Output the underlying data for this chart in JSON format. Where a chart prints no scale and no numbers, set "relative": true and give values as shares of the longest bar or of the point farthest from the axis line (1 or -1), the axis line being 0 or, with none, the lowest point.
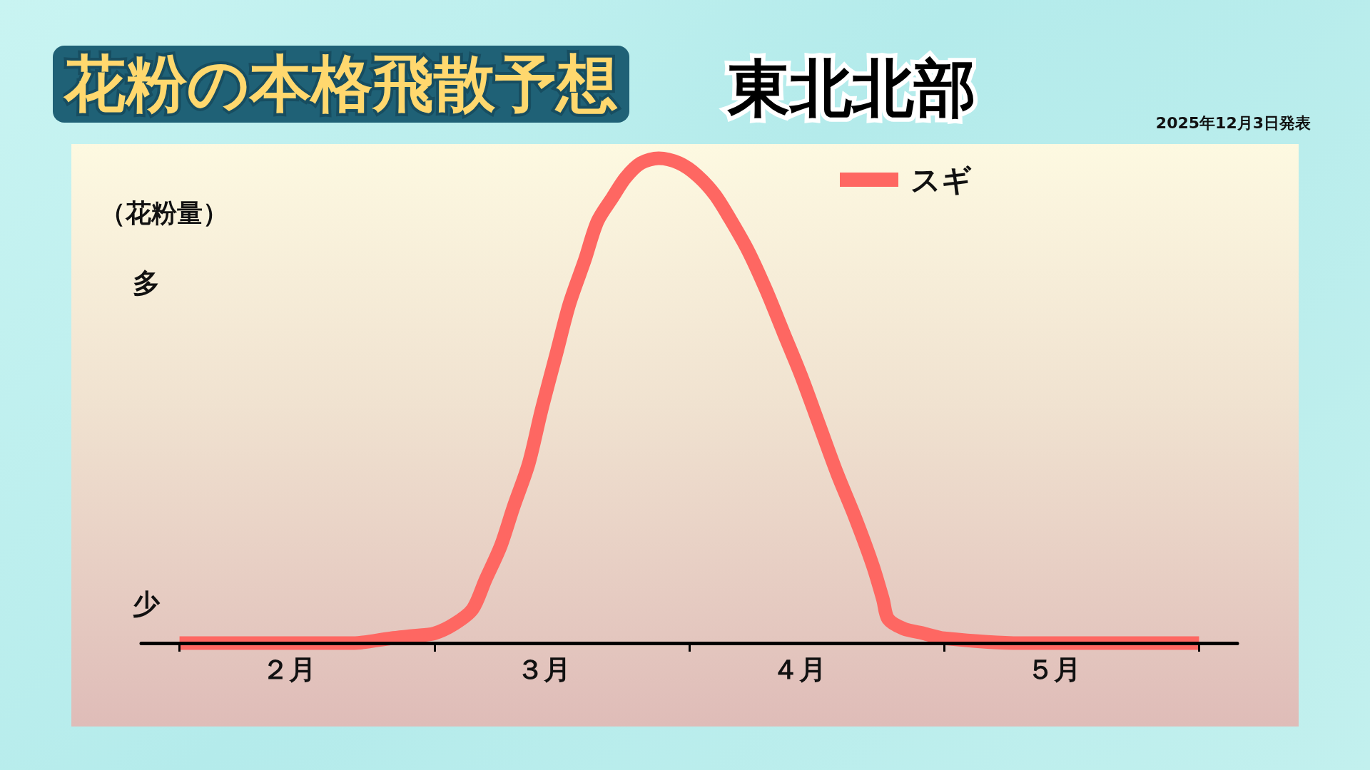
{
  "chart_data": {
    "type": "line",
    "title": "花粉の本格飛散予想",
    "subtitle": "東北北部",
    "ylabel": "（花粉量）",
    "annotations": [
      "多",
      "少",
      "2025年12月3日発表"
    ],
    "relative": true,
    "legend": "top right",
    "marker": "none",
    "xlim": [
      1.85,
      6.15
    ],
    "xticks": [
      {
        "value": 2,
        "label": null
      },
      {
        "value": 2.43,
        "label": "２月"
      },
      {
        "value": 3,
        "label": null
      },
      {
        "value": 3.43,
        "label": "３月"
      },
      {
        "value": 4,
        "label": null
      },
      {
        "value": 4.43,
        "label": "４月"
      },
      {
        "value": 5,
        "label": null
      },
      {
        "value": 5.43,
        "label": "５月"
      },
      {
        "value": 6,
        "label": null
      }
    ],
    "x": [
      2.0,
      2.3,
      2.68,
      2.83,
      2.92,
      3.0,
      3.08,
      3.15,
      3.2,
      3.26,
      3.31,
      3.37,
      3.42,
      3.48,
      3.53,
      3.59,
      3.64,
      3.7,
      3.75,
      3.81,
      3.88,
      3.96,
      4.03,
      4.1,
      4.16,
      4.23,
      4.3,
      4.37,
      4.44,
      4.51,
      4.58,
      4.65,
      4.72,
      4.76,
      4.78,
      4.84,
      4.92,
      5.0,
      5.3,
      6.0
    ],
    "series": [
      {
        "name": "スギ",
        "color": "#fe6762",
        "values": [
          0,
          0,
          0,
          0.01,
          0.015,
          0.02,
          0.04,
          0.07,
          0.13,
          0.2,
          0.28,
          0.37,
          0.48,
          0.6,
          0.7,
          0.79,
          0.87,
          0.92,
          0.96,
          0.99,
          1,
          0.99,
          0.965,
          0.925,
          0.875,
          0.81,
          0.73,
          0.64,
          0.55,
          0.45,
          0.35,
          0.26,
          0.16,
          0.09,
          0.05,
          0.03,
          0.02,
          0.01,
          0,
          0
        ]
      }
    ]
  }
}
